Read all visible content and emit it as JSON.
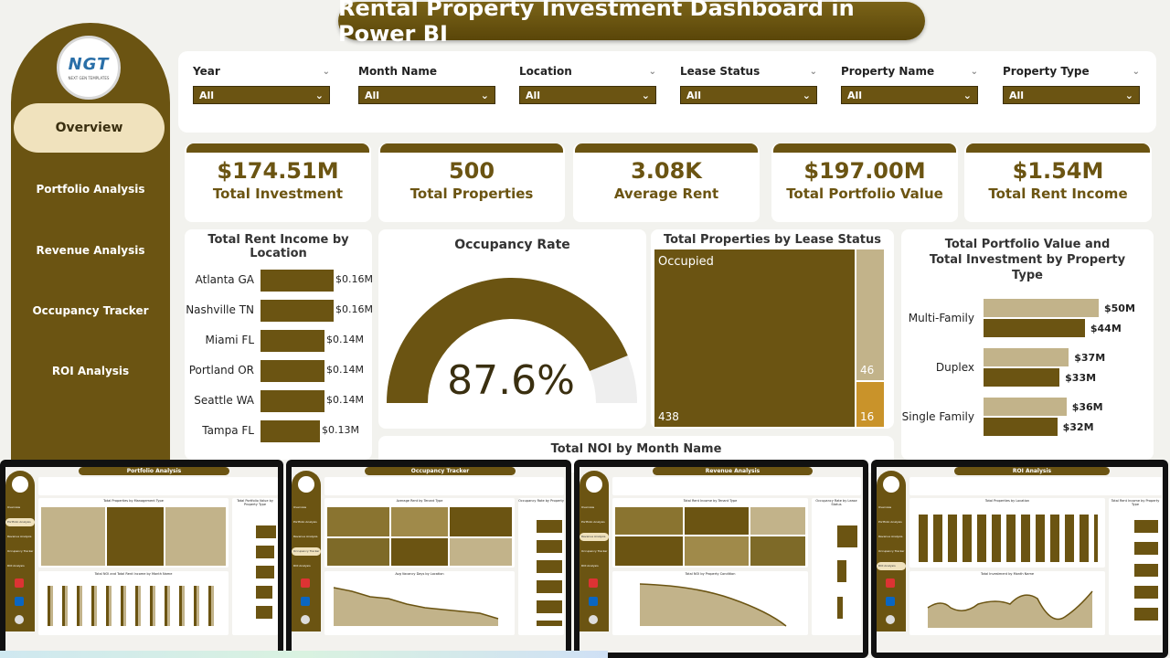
{
  "title": "Rental Property Investment Dashboard in Power BI",
  "logo": {
    "text": "NGT",
    "subtext": "NEXT GEN TEMPLATES"
  },
  "nav": [
    "Overview",
    "Portfolio Analysis",
    "Revenue Analysis",
    "Occupancy Tracker",
    "ROI Analysis"
  ],
  "filters": [
    {
      "label": "Year",
      "value": "All"
    },
    {
      "label": "Month Name",
      "value": "All"
    },
    {
      "label": "Location",
      "value": "All"
    },
    {
      "label": "Lease Status",
      "value": "All"
    },
    {
      "label": "Property Name",
      "value": "All"
    },
    {
      "label": "Property Type",
      "value": "All"
    }
  ],
  "kpis": [
    {
      "value": "$174.51M",
      "label": "Total Investment"
    },
    {
      "value": "500",
      "label": "Total Properties"
    },
    {
      "value": "3.08K",
      "label": "Average Rent"
    },
    {
      "value": "$197.00M",
      "label": "Total Portfolio Value"
    },
    {
      "value": "$1.54M",
      "label": "Total Rent Income"
    }
  ],
  "rent_by_location": {
    "title": "Total Rent Income by Location",
    "rows": [
      {
        "label": "Atlanta GA",
        "value": 0.16,
        "text": "$0.16M"
      },
      {
        "label": "Nashville TN",
        "value": 0.16,
        "text": "$0.16M"
      },
      {
        "label": "Miami FL",
        "value": 0.14,
        "text": "$0.14M"
      },
      {
        "label": "Portland OR",
        "value": 0.14,
        "text": "$0.14M"
      },
      {
        "label": "Seattle WA",
        "value": 0.14,
        "text": "$0.14M"
      },
      {
        "label": "Tampa FL",
        "value": 0.13,
        "text": "$0.13M"
      }
    ]
  },
  "occupancy": {
    "title": "Occupancy Rate",
    "value_text": "87.6%",
    "value": 0.876
  },
  "lease_status": {
    "title": "Total Properties by Lease Status",
    "segments": [
      {
        "label": "Occupied",
        "value": 438
      },
      {
        "label": "",
        "value": 46
      },
      {
        "label": "",
        "value": 16
      }
    ]
  },
  "portfolio_by_type": {
    "title": "Total Portfolio Value and Total Investment by Property Type",
    "rows": [
      {
        "label": "Multi-Family",
        "portfolio": 50,
        "investment": 44,
        "ptext": "$50M",
        "itext": "$44M"
      },
      {
        "label": "Duplex",
        "portfolio": 37,
        "investment": 33,
        "ptext": "$37M",
        "itext": "$33M"
      },
      {
        "label": "Single Family",
        "portfolio": 36,
        "investment": 32,
        "ptext": "$36M",
        "itext": "$32M"
      }
    ]
  },
  "noi_title": "Total NOI by Month Name",
  "thumbs": [
    {
      "title": "Portfolio Analysis"
    },
    {
      "title": "Occupancy Tracker"
    },
    {
      "title": "Revenue Analysis"
    },
    {
      "title": "ROI Analysis"
    }
  ],
  "colors": {
    "primary": "#6b5412",
    "accent": "#c9932a",
    "light": "#c2b38a"
  }
}
